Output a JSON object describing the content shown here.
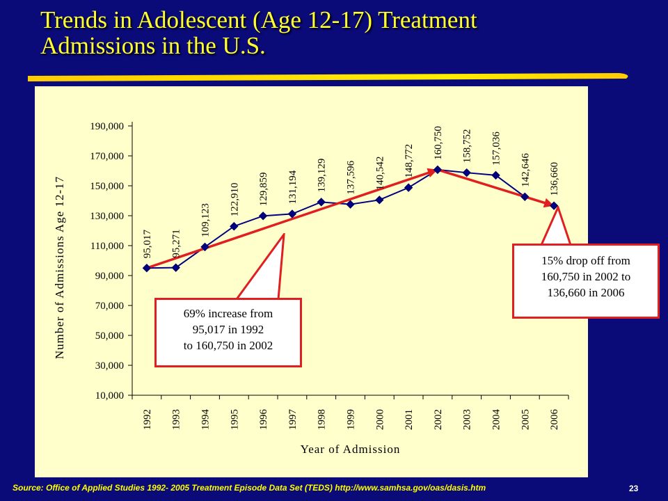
{
  "title": {
    "line1": "Trends in Adolescent (Age 12-17) Treatment",
    "line2": "Admissions in the U.S."
  },
  "colors": {
    "background": "#0a0a78",
    "title": "#ffff33",
    "panel": "#ffffcc",
    "series": "#000080",
    "trend_arrows": "#e02020"
  },
  "chart_data": {
    "type": "line",
    "title": "",
    "xlabel": "Year of Admission",
    "ylabel": "Number of Admissions Age 12-17",
    "x": [
      "1992",
      "1993",
      "1994",
      "1995",
      "1996",
      "1997",
      "1998",
      "1999",
      "2000",
      "2001",
      "2002",
      "2003",
      "2004",
      "2005",
      "2006"
    ],
    "series": [
      {
        "values": [
          95017,
          95271,
          109123,
          122910,
          129859,
          131194,
          139129,
          137596,
          140542,
          148772,
          160750,
          158752,
          157036,
          142646,
          136660
        ],
        "data_labels": [
          "95,017",
          "95,271",
          "109,123",
          "122,910",
          "129,859",
          "131,194",
          "139,129",
          "137,596",
          "140,542",
          "148,772",
          "160,750",
          "158,752",
          "157,036",
          "142,646",
          "136,660"
        ]
      }
    ],
    "ylim": [
      10000,
      190000
    ],
    "yticks": [
      10000,
      30000,
      50000,
      70000,
      90000,
      110000,
      130000,
      150000,
      170000,
      190000
    ],
    "ytick_labels": [
      "10,000",
      "30,000",
      "50,000",
      "70,000",
      "90,000",
      "110,000",
      "130,000",
      "150,000",
      "170,000",
      "190,000"
    ],
    "grid": false,
    "legend": "none",
    "trend_arrows": [
      {
        "from": "1992",
        "from_value": 95017,
        "to": "2002",
        "to_value": 160750
      },
      {
        "from": "2002",
        "from_value": 160750,
        "to": "2006",
        "to_value": 136660
      }
    ]
  },
  "callouts": {
    "left": {
      "line1": "69% increase from",
      "line2": "95,017 in 1992",
      "line3": "to 160,750 in 2002"
    },
    "right": {
      "line1": "15% drop off from",
      "line2": "160,750 in  2002 to",
      "line3": "136,660 in 2006"
    }
  },
  "footer": {
    "source": "Source: Office of Applied Studies 1992- 2005 Treatment Episode Data Set (TEDS) http://www.samhsa.gov/oas/dasis.htm",
    "page_number": "23"
  }
}
